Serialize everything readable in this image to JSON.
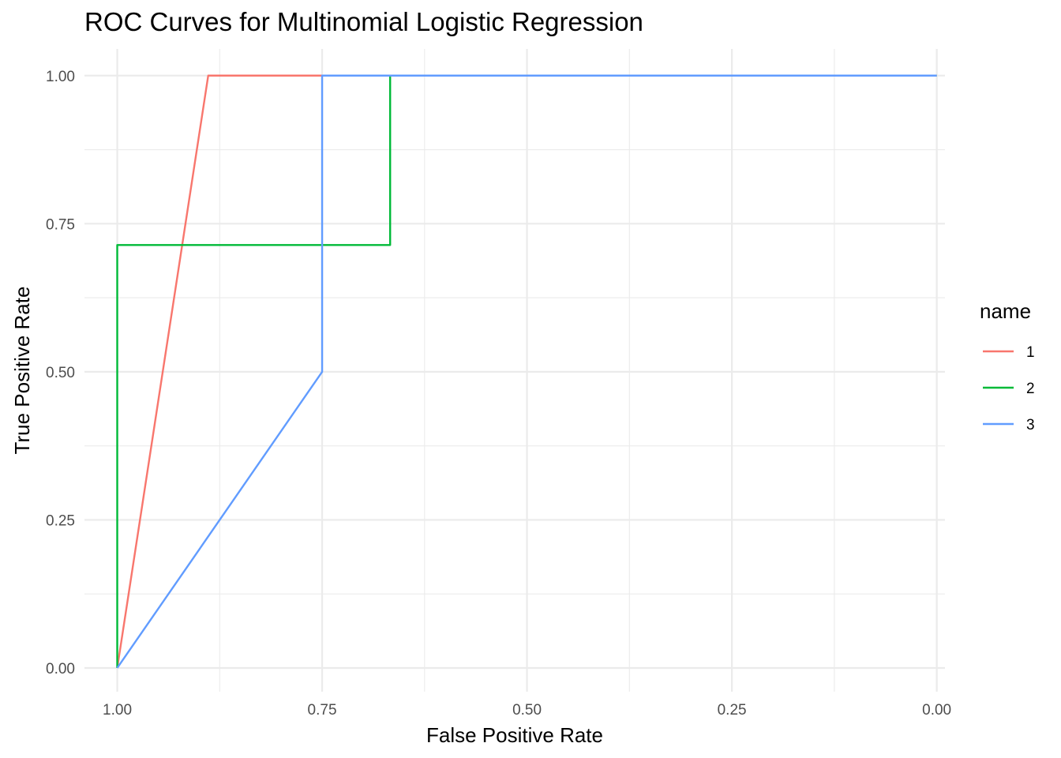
{
  "chart_data": {
    "type": "line",
    "title": "ROC Curves for Multinomial Logistic Regression",
    "xlabel": "False Positive Rate",
    "ylabel": "True Positive Rate",
    "x_reversed": true,
    "xlim": [
      1.04,
      -0.01
    ],
    "ylim": [
      -0.04,
      1.045
    ],
    "x_ticks": [
      1.0,
      0.75,
      0.5,
      0.25,
      0.0
    ],
    "x_tick_labels": [
      "1.00",
      "0.75",
      "0.50",
      "0.25",
      "0.00"
    ],
    "x_minor": [
      0.875,
      0.625,
      0.375,
      0.125
    ],
    "y_ticks": [
      0.0,
      0.25,
      0.5,
      0.75,
      1.0
    ],
    "y_tick_labels": [
      "0.00",
      "0.25",
      "0.50",
      "0.75",
      "1.00"
    ],
    "y_minor": [
      0.125,
      0.375,
      0.625,
      0.875
    ],
    "grid": true,
    "legend": {
      "title": "name",
      "position": "right"
    },
    "series": [
      {
        "name": "1",
        "color": "#F8766D",
        "points": [
          [
            1.0,
            0.0
          ],
          [
            0.889,
            1.0
          ],
          [
            0.75,
            1.0
          ],
          [
            0.0,
            1.0
          ]
        ]
      },
      {
        "name": "2",
        "color": "#00BA38",
        "points": [
          [
            1.0,
            0.0
          ],
          [
            1.0,
            0.714
          ],
          [
            0.667,
            0.714
          ],
          [
            0.667,
            1.0
          ],
          [
            0.0,
            1.0
          ]
        ]
      },
      {
        "name": "3",
        "color": "#619CFF",
        "points": [
          [
            1.0,
            0.0
          ],
          [
            0.75,
            0.5
          ],
          [
            0.75,
            1.0
          ],
          [
            0.0,
            1.0
          ]
        ]
      }
    ]
  }
}
